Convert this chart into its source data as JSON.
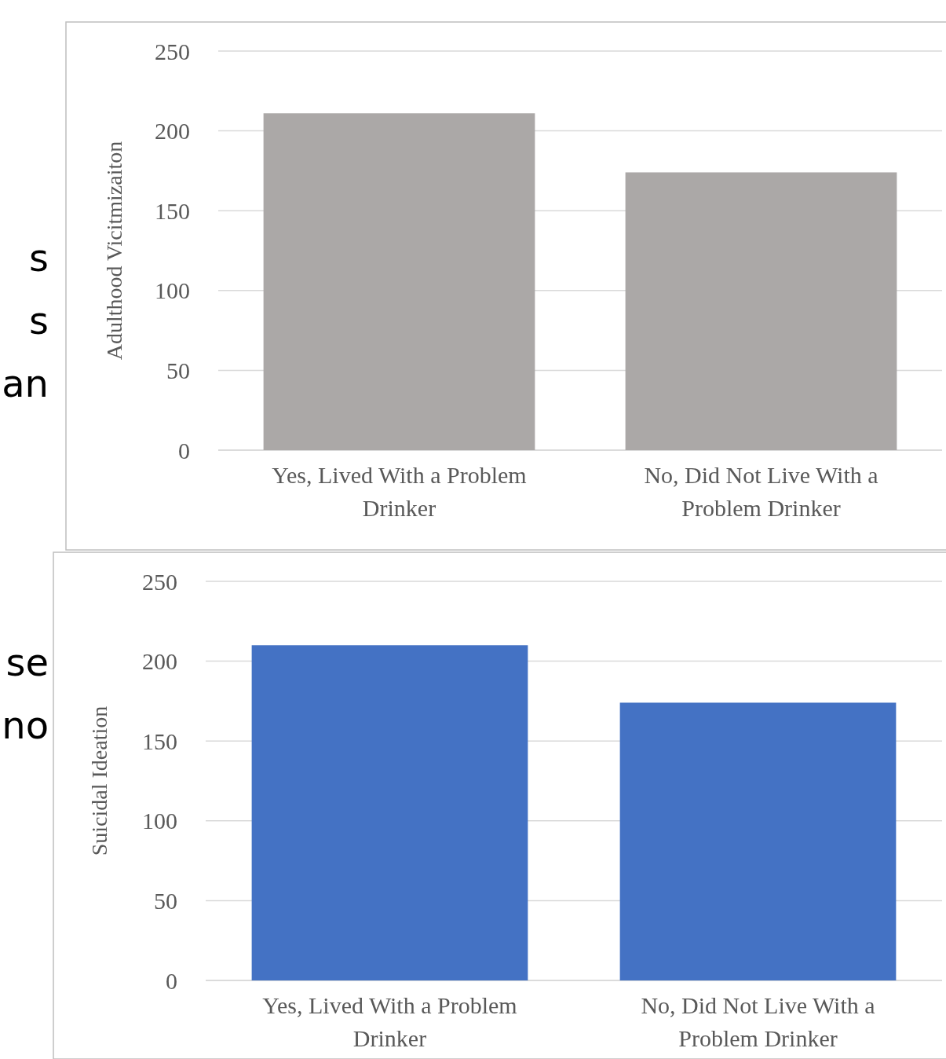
{
  "chart_data": [
    {
      "type": "bar",
      "ylabel": "Adulthood Vicitmizaiton",
      "categories": [
        "Yes, Lived With a Problem Drinker",
        "No, Did Not Live With a Problem Drinker"
      ],
      "values": [
        211,
        174
      ],
      "color": "#aba8a7",
      "ylim": [
        0,
        250
      ],
      "yticks": [
        0,
        50,
        100,
        150,
        200,
        250
      ],
      "grid": "y",
      "annotations": [
        "s",
        "s",
        "an"
      ]
    },
    {
      "type": "bar",
      "ylabel": "Suicidal Ideation",
      "categories": [
        "Yes, Lived With a Problem Drinker",
        "No, Did Not Live With a Problem Drinker"
      ],
      "values": [
        210,
        174
      ],
      "color": "#4472c4",
      "ylim": [
        0,
        250
      ],
      "yticks": [
        0,
        50,
        100,
        150,
        200,
        250
      ],
      "grid": "y",
      "annotations": [
        "se",
        "no"
      ]
    }
  ]
}
